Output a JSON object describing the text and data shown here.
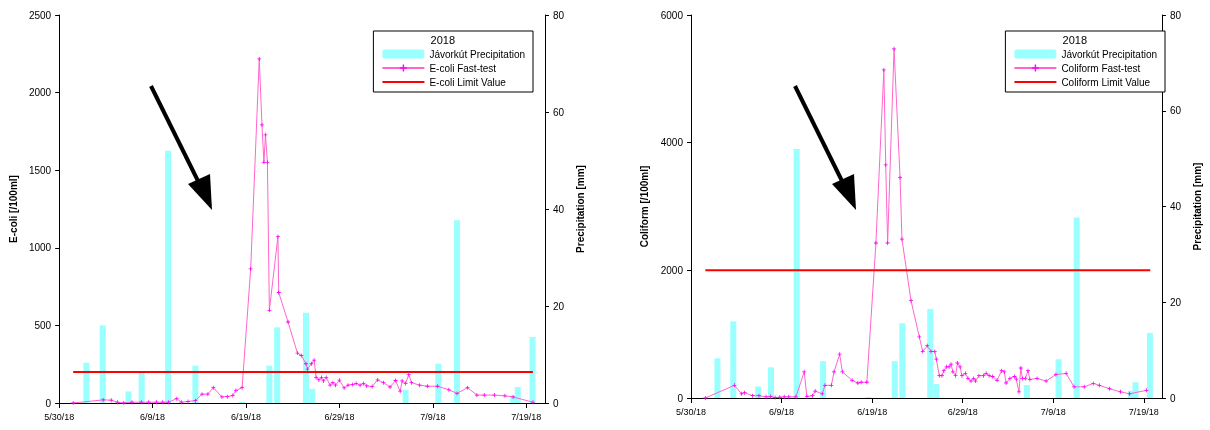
{
  "chart_data": [
    {
      "type": "bar",
      "ylabel": "E-coli [/100ml]",
      "y2label": "Precipitation [mm]",
      "legend_title": "2018",
      "legend": "top right",
      "grid": false,
      "xlim": [
        "2018-05-30",
        "2018-07-21"
      ],
      "xticks": [
        {
          "value": "2018-05-30",
          "label": "5/30/18"
        },
        {
          "value": "2018-06-09",
          "label": "6/9/18"
        },
        {
          "value": "2018-06-19",
          "label": "6/19/18"
        },
        {
          "value": "2018-06-29",
          "label": "6/29/18"
        },
        {
          "value": "2018-07-09",
          "label": "7/9/18"
        },
        {
          "value": "2018-07-19",
          "label": "7/19/18"
        }
      ],
      "ylim": [
        0,
        2500
      ],
      "yticks": [
        0,
        500,
        1000,
        1500,
        2000,
        2500
      ],
      "y2lim": [
        0,
        80
      ],
      "y2ticks": [
        0,
        20,
        40,
        60,
        80
      ],
      "series": [
        {
          "name": "Jávorkút Precipitation",
          "axis": "y2",
          "color": "#99ffff",
          "x": [
            "2018-06-01T22:00",
            "2018-06-03T16:00",
            "2018-06-06T10:00",
            "2018-06-07T20:00",
            "2018-06-10T16:00",
            "2018-06-13T14:00",
            "2018-06-18T14:00",
            "2018-06-21T12:00",
            "2018-06-22T08:00",
            "2018-06-25T10:00",
            "2018-06-26T02:00",
            "2018-07-06T02:00",
            "2018-07-09T14:00",
            "2018-07-11T14:00",
            "2018-07-17T14:00",
            "2018-07-18T02:00",
            "2018-07-19T16:00"
          ],
          "values": [
            8.3,
            16,
            2.4,
            6.4,
            52,
            7.7,
            0.2,
            7.7,
            15.6,
            18.6,
            2.9,
            2.7,
            8.1,
            37.7,
            1.5,
            3.3,
            13.6
          ]
        },
        {
          "name": "E-coli Fast-test",
          "type": "line",
          "color": "#ff66cc",
          "marker": "cross",
          "x": [
            "2018-05-31T12:00",
            "2018-06-03T17:00",
            "2018-06-04T14:00",
            "2018-06-05T06:00",
            "2018-06-05T22:00",
            "2018-06-06T19:00",
            "2018-06-07T19:00",
            "2018-06-08T14:00",
            "2018-06-09T10:00",
            "2018-06-10T02:00",
            "2018-06-10T17:00",
            "2018-06-11T14:00",
            "2018-06-12T02:00",
            "2018-06-12T19:00",
            "2018-06-13T14:00",
            "2018-06-14T07:00",
            "2018-06-14T22:00",
            "2018-06-15T12:00",
            "2018-06-16T10:00",
            "2018-06-17T00:00",
            "2018-06-17T14:00",
            "2018-06-17T22:00",
            "2018-06-18T14:00",
            "2018-06-19T12:00",
            "2018-06-20T10:00",
            "2018-06-20T17:00",
            "2018-06-20T22:00",
            "2018-06-21T02:00",
            "2018-06-21T07:00",
            "2018-06-21T12:00",
            "2018-06-22T10:00",
            "2018-06-22T12:00",
            "2018-06-23T12:00",
            "2018-06-24T12:00",
            "2018-06-24T22:00",
            "2018-06-25T10:00",
            "2018-06-25T14:00",
            "2018-06-26T00:00",
            "2018-06-26T07:00",
            "2018-06-26T12:00",
            "2018-06-26T19:00",
            "2018-06-27T02:00",
            "2018-06-27T07:00",
            "2018-06-27T14:00",
            "2018-06-28T00:00",
            "2018-06-28T07:00",
            "2018-06-28T14:00",
            "2018-06-29T00:00",
            "2018-06-29T12:00",
            "2018-06-29T22:00",
            "2018-06-30T10:00",
            "2018-06-30T19:00",
            "2018-07-01T05:00",
            "2018-07-01T14:00",
            "2018-07-01T22:00",
            "2018-07-02T12:00",
            "2018-07-03T02:00",
            "2018-07-03T17:00",
            "2018-07-04T10:00",
            "2018-07-05T00:00",
            "2018-07-05T12:00",
            "2018-07-05T17:00",
            "2018-07-06T02:00",
            "2018-07-06T10:00",
            "2018-07-06T17:00",
            "2018-07-07T14:00",
            "2018-07-08T10:00",
            "2018-07-09T12:00",
            "2018-07-10T17:00",
            "2018-07-11T14:00",
            "2018-07-12T17:00",
            "2018-07-13T17:00",
            "2018-07-14T12:00",
            "2018-07-15T14:00",
            "2018-07-16T17:00",
            "2018-07-17T14:00",
            "2018-07-19T17:00"
          ],
          "values": [
            0,
            20,
            18,
            5,
            0,
            5,
            5,
            5,
            5,
            5,
            5,
            28,
            5,
            10,
            15,
            57,
            57,
            99,
            39,
            41,
            48,
            80,
            99,
            864,
            2217,
            1792,
            1551,
            1728,
            1551,
            597,
            1073,
            712,
            522,
            322,
            306,
            253,
            218,
            253,
            276,
            165,
            149,
            165,
            142,
            165,
            115,
            131,
            115,
            147,
            97,
            115,
            119,
            126,
            115,
            126,
            110,
            106,
            149,
            131,
            103,
            145,
            76,
            142,
            126,
            184,
            131,
            115,
            108,
            108,
            85,
            62,
            99,
            51,
            51,
            51,
            46,
            39,
            5
          ]
        },
        {
          "name": "E-coli Limit Value",
          "type": "line",
          "color": "#ff0000",
          "marker": "none",
          "x": [
            "2018-05-31T12:00",
            "2018-07-19T17:00"
          ],
          "values": [
            200,
            200
          ]
        }
      ]
    },
    {
      "type": "bar",
      "ylabel": "Coliform [/100ml]",
      "y2label": "Precipitation [mm]",
      "legend_title": "2018",
      "legend": "top right",
      "grid": false,
      "xlim": [
        "2018-05-30",
        "2018-07-21"
      ],
      "xticks": [
        {
          "value": "2018-05-30",
          "label": "5/30/18"
        },
        {
          "value": "2018-06-09",
          "label": "6/9/18"
        },
        {
          "value": "2018-06-19",
          "label": "6/19/18"
        },
        {
          "value": "2018-06-29",
          "label": "6/29/18"
        },
        {
          "value": "2018-07-09",
          "label": "7/9/18"
        },
        {
          "value": "2018-07-19",
          "label": "7/19/18"
        }
      ],
      "ylim": [
        0,
        6000
      ],
      "yticks": [
        0,
        2000,
        4000,
        6000
      ],
      "y2lim": [
        0,
        80
      ],
      "y2ticks": [
        0,
        20,
        40,
        60,
        80
      ],
      "series": [
        {
          "name": "Jávorkút Precipitation",
          "axis": "y2",
          "color": "#99ffff",
          "x": [
            "2018-06-01T22:00",
            "2018-06-03T16:00",
            "2018-06-06T10:00",
            "2018-06-07T20:00",
            "2018-06-10T16:00",
            "2018-06-13T14:00",
            "2018-06-18T14:00",
            "2018-06-21T12:00",
            "2018-06-22T08:00",
            "2018-06-25T10:00",
            "2018-06-26T02:00",
            "2018-07-06T02:00",
            "2018-07-09T14:00",
            "2018-07-11T14:00",
            "2018-07-17T14:00",
            "2018-07-18T02:00",
            "2018-07-19T16:00"
          ],
          "values": [
            8.3,
            16,
            2.4,
            6.4,
            52,
            7.7,
            0.2,
            7.7,
            15.6,
            18.6,
            2.9,
            2.7,
            8.1,
            37.7,
            1.5,
            3.3,
            13.6
          ]
        },
        {
          "name": "Coliform Fast-test",
          "type": "line",
          "color": "#ff66cc",
          "marker": "cross",
          "x": [
            "2018-05-31T14:00",
            "2018-06-03T19:00",
            "2018-06-04T14:00",
            "2018-06-04T22:00",
            "2018-06-05T19:00",
            "2018-06-06T12:00",
            "2018-06-07T07:00",
            "2018-06-07T19:00",
            "2018-06-08T07:00",
            "2018-06-08T19:00",
            "2018-06-09T07:00",
            "2018-06-09T19:00",
            "2018-06-10T14:00",
            "2018-06-11T12:00",
            "2018-06-11T19:00",
            "2018-06-12T10:00",
            "2018-06-12T17:00",
            "2018-06-13T12:00",
            "2018-06-13T19:00",
            "2018-06-14T12:00",
            "2018-06-14T19:00",
            "2018-06-15T10:00",
            "2018-06-15T17:00",
            "2018-06-16T19:00",
            "2018-06-17T10:00",
            "2018-06-17T19:00",
            "2018-06-18T10:00",
            "2018-06-19T10:00",
            "2018-06-20T07:00",
            "2018-06-20T12:00",
            "2018-06-20T17:00",
            "2018-06-21T10:00",
            "2018-06-22T02:00",
            "2018-06-22T07:00",
            "2018-06-23T07:00",
            "2018-06-24T05:00",
            "2018-06-24T14:00",
            "2018-06-25T02:00",
            "2018-06-25T12:00",
            "2018-06-25T22:00",
            "2018-06-26T02:00",
            "2018-06-26T10:00",
            "2018-06-26T17:00",
            "2018-06-26T22:00",
            "2018-06-27T05:00",
            "2018-06-27T12:00",
            "2018-06-27T17:00",
            "2018-06-27T22:00",
            "2018-06-28T05:00",
            "2018-06-28T10:00",
            "2018-06-28T17:00",
            "2018-06-28T22:00",
            "2018-06-29T07:00",
            "2018-06-29T14:00",
            "2018-06-29T22:00",
            "2018-06-30T05:00",
            "2018-06-30T10:00",
            "2018-06-30T19:00",
            "2018-07-01T07:00",
            "2018-07-01T14:00",
            "2018-07-01T22:00",
            "2018-07-02T07:00",
            "2018-07-02T19:00",
            "2018-07-03T07:00",
            "2018-07-03T14:00",
            "2018-07-03T19:00",
            "2018-07-04T05:00",
            "2018-07-04T17:00",
            "2018-07-04T22:00",
            "2018-07-05T05:00",
            "2018-07-05T10:00",
            "2018-07-05T14:00",
            "2018-07-05T22:00",
            "2018-07-06T05:00",
            "2018-07-06T10:00",
            "2018-07-07T05:00",
            "2018-07-08T05:00",
            "2018-07-09T07:00",
            "2018-07-10T10:00",
            "2018-07-11T07:00",
            "2018-07-12T10:00",
            "2018-07-13T10:00",
            "2018-07-14T02:00",
            "2018-07-15T05:00",
            "2018-07-16T10:00",
            "2018-07-17T10:00",
            "2018-07-19T07:00"
          ],
          "values": [
            0,
            199,
            66,
            84,
            36,
            36,
            18,
            24,
            6,
            12,
            18,
            18,
            18,
            410,
            24,
            36,
            108,
            66,
            199,
            199,
            410,
            687,
            410,
            277,
            235,
            247,
            247,
            2428,
            5139,
            3651,
            2428,
            5470,
            3452,
            2488,
            1524,
            958,
            729,
            819,
            729,
            729,
            608,
            349,
            349,
            428,
            488,
            488,
            530,
            410,
            349,
            548,
            488,
            349,
            386,
            307,
            265,
            307,
            265,
            349,
            349,
            386,
            349,
            337,
            277,
            428,
            410,
            235,
            307,
            337,
            295,
            96,
            470,
            307,
            307,
            428,
            289,
            307,
            265,
            367,
            386,
            175,
            175,
            229,
            199,
            145,
            96,
            66,
            120
          ]
        },
        {
          "name": "Coliform Limit Value",
          "type": "line",
          "color": "#ff0000",
          "marker": "none",
          "x": [
            "2018-05-31T14:00",
            "2018-07-19T17:00"
          ],
          "values": [
            2000,
            2000
          ]
        }
      ]
    }
  ]
}
